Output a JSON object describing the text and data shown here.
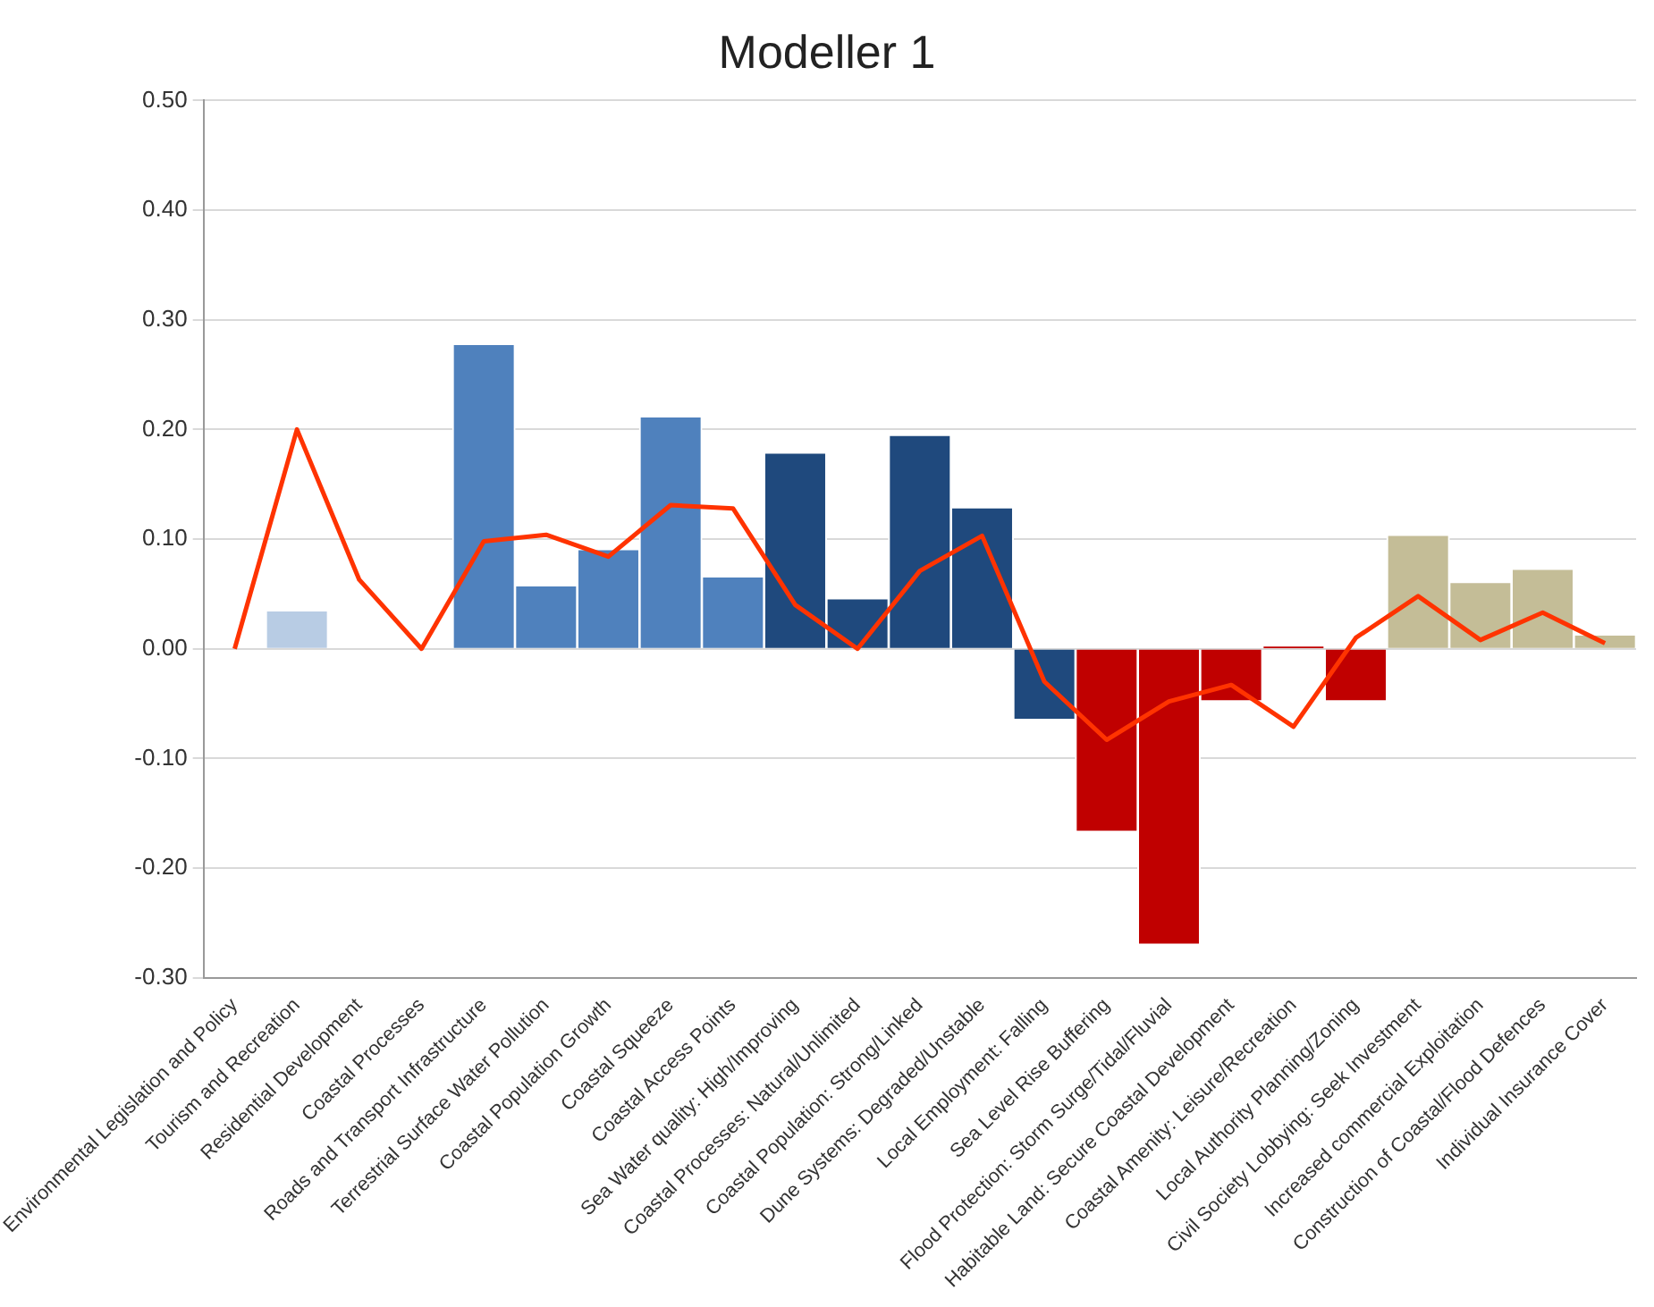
{
  "chart_data": {
    "type": "bar",
    "title": "Modeller 1",
    "categories": [
      "Environmental Legislation and Policy",
      "Tourism and Recreation",
      "Residential Development",
      "Coastal Processes",
      "Roads and Transport Infrastructure",
      "Terrestrial Surface Water Pollution",
      "Coastal Population Growth",
      "Coastal Squeeze",
      "Coastal Access Points",
      "Sea Water quality: High/Improving",
      "Coastal Processes: Natural/Unlimited",
      "Coastal Population: Strong/Linked",
      "Dune Systems: Degraded/Unstable",
      "Local Employment: Falling",
      "Sea Level Rise Buffering",
      "Flood Protection: Storm Surge/Tidal/Fluvial",
      "Habitable Land: Secure Coastal Development",
      "Coastal Amenity: Leisure/Recreation",
      "Local Authority Planning/Zoning",
      "Civil Society Lobbying: Seek Investment",
      "Increased commercial Exploitation",
      "Construction of Coastal/Flood Defences",
      "Individual Insurance Cover"
    ],
    "series": [
      {
        "colors": [
          "#b8cce4",
          "#b8cce4",
          "#b8cce4",
          "#b8cce4",
          "#4f81bd",
          "#4f81bd",
          "#4f81bd",
          "#4f81bd",
          "#4f81bd",
          "#1f497d",
          "#1f497d",
          "#1f497d",
          "#1f497d",
          "#1f497d",
          "#c00000",
          "#c00000",
          "#c00000",
          "#c00000",
          "#c00000",
          "#c4bd97",
          "#c4bd97",
          "#c4bd97",
          "#c4bd97"
        ],
        "values": [
          0,
          0.035,
          0,
          0,
          0.278,
          0.058,
          0.091,
          0.212,
          0.066,
          0.179,
          0.046,
          0.195,
          0.129,
          -0.065,
          -0.167,
          -0.27,
          -0.048,
          0.002,
          -0.048,
          0.104,
          0.061,
          0.073,
          0.013
        ]
      },
      {
        "type": "line",
        "color": "#ff3300",
        "values": [
          0,
          0.2,
          0.063,
          0,
          0.098,
          0.104,
          0.084,
          0.131,
          0.128,
          0.04,
          0,
          0.071,
          0.103,
          -0.03,
          -0.083,
          -0.048,
          -0.033,
          -0.071,
          0.01,
          0.048,
          0.008,
          0.033,
          0.005
        ]
      }
    ],
    "ylim": [
      -0.3,
      0.5
    ],
    "yticks": [
      {
        "value": -0.3,
        "label": "-0.30"
      },
      {
        "value": -0.2,
        "label": "-0.20"
      },
      {
        "value": -0.1,
        "label": "-0.10"
      },
      {
        "value": 0,
        "label": "0.00"
      },
      {
        "value": 0.1,
        "label": "0.10"
      },
      {
        "value": 0.2,
        "label": "0.20"
      },
      {
        "value": 0.3,
        "label": "0.30"
      },
      {
        "value": 0.4,
        "label": "0.40"
      },
      {
        "value": 0.5,
        "label": "0.50"
      }
    ],
    "grid": "y",
    "legend": false,
    "marker": "none"
  }
}
